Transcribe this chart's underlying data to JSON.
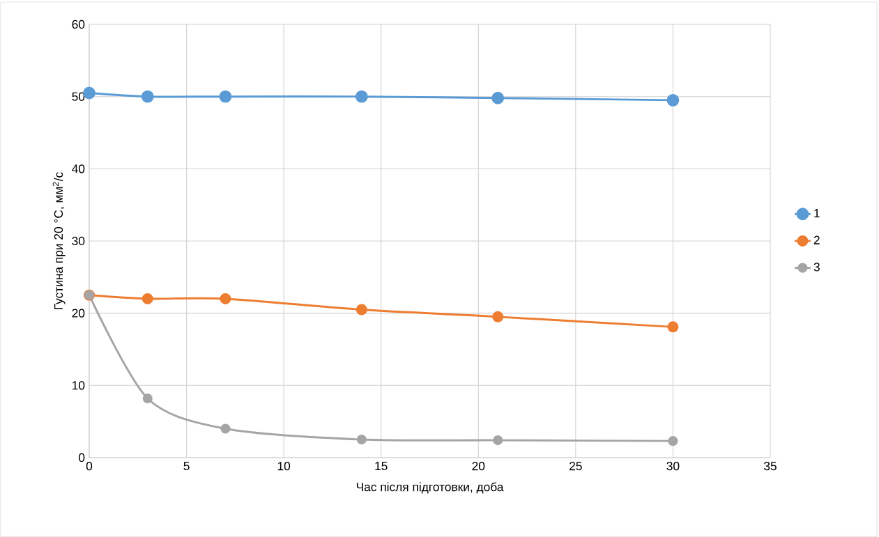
{
  "chart_data": {
    "type": "line",
    "xlabel": "Час після підготовки, доба",
    "ylabel": "Густина при 20 °С, мм$^{2}$/с",
    "x": [
      0,
      3,
      7,
      14,
      21,
      30
    ],
    "series": [
      {
        "name": "1",
        "color": "#5b9bd5",
        "values": [
          50.5,
          50,
          50,
          50,
          49.8,
          49.5
        ]
      },
      {
        "name": "2",
        "color": "#ed7d31",
        "values": [
          22.5,
          22,
          22,
          20.5,
          19.5,
          18.1
        ]
      },
      {
        "name": "3",
        "color": "#a5a5a5",
        "values": [
          22.5,
          8.2,
          4.0,
          2.5,
          2.4,
          2.3
        ]
      }
    ],
    "xlim": [
      0,
      35
    ],
    "ylim": [
      0,
      60
    ],
    "xticks": [
      0,
      5,
      10,
      15,
      20,
      25,
      30,
      35
    ],
    "yticks": [
      0,
      10,
      20,
      30,
      40,
      50,
      60
    ],
    "grid": true,
    "legend": "right",
    "marker": "circle",
    "line_style": "solid"
  }
}
